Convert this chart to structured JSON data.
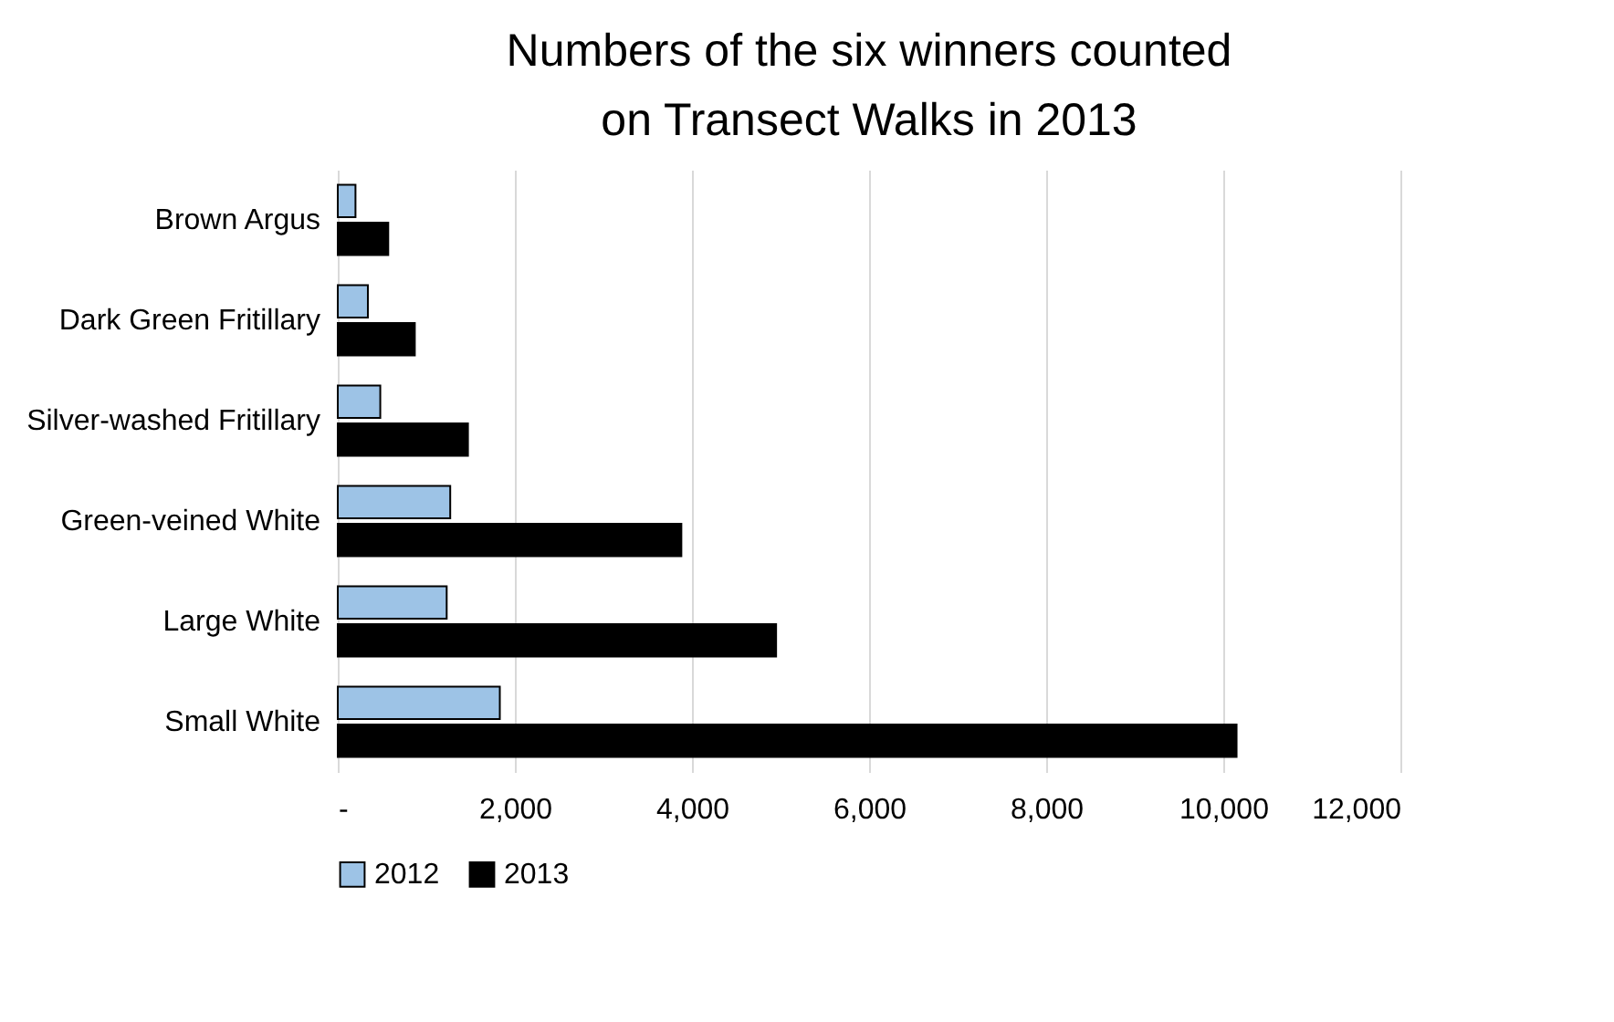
{
  "chart_data": {
    "type": "bar",
    "orientation": "horizontal",
    "title": "Numbers of the six winners counted\non Transect Walks in 2013",
    "categories": [
      "Brown Argus",
      "Dark Green Fritillary",
      "Silver-washed Fritillary",
      "Green-veined White",
      "Large White",
      "Small White"
    ],
    "series": [
      {
        "name": "2012",
        "color": "#9dc3e6",
        "values": [
          200,
          340,
          480,
          1270,
          1230,
          1830
        ]
      },
      {
        "name": "2013",
        "color": "#000000",
        "values": [
          570,
          870,
          1470,
          3880,
          4950,
          10150
        ]
      }
    ],
    "xlim": [
      0,
      12000
    ],
    "xticks": [
      {
        "value": 0,
        "label": "-"
      },
      {
        "value": 2000,
        "label": "2,000"
      },
      {
        "value": 4000,
        "label": "4,000"
      },
      {
        "value": 6000,
        "label": "6,000"
      },
      {
        "value": 8000,
        "label": "8,000"
      },
      {
        "value": 10000,
        "label": "10,000"
      },
      {
        "value": 12000,
        "label": "12,000"
      }
    ],
    "grid": "x",
    "legend": "bottom"
  }
}
